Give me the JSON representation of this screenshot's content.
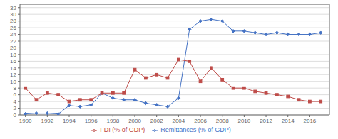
{
  "chart_data": {
    "type": "line",
    "x": [
      1990,
      1991,
      1992,
      1993,
      1994,
      1995,
      1996,
      1997,
      1998,
      1999,
      2000,
      2001,
      2002,
      2003,
      2004,
      2005,
      2006,
      2007,
      2008,
      2009,
      2010,
      2011,
      2012,
      2013,
      2014,
      2015,
      2016,
      2017
    ],
    "series": [
      {
        "name": "Remittances (% of GDP)",
        "color": "#4472C4",
        "marker": "diamond",
        "values": [
          0.3,
          0.5,
          0.5,
          0.3,
          2.8,
          2.5,
          3.0,
          6.5,
          5.0,
          4.5,
          4.5,
          3.5,
          3.0,
          2.5,
          5.0,
          25.5,
          28.0,
          28.5,
          28.0,
          25.0,
          25.0,
          24.5,
          24.0,
          24.5,
          24.0,
          24.0,
          24.0,
          24.5
        ]
      },
      {
        "name": "FDI (% of GDP)",
        "color": "#BE4B48",
        "marker": "square",
        "values": [
          8.0,
          4.5,
          6.5,
          6.0,
          4.0,
          4.5,
          4.5,
          6.5,
          6.5,
          6.5,
          13.5,
          11.0,
          12.0,
          11.0,
          16.5,
          16.0,
          10.0,
          14.0,
          10.5,
          8.0,
          8.0,
          7.0,
          6.5,
          6.0,
          5.5,
          4.5,
          4.0,
          4.0
        ]
      }
    ],
    "xlim": [
      1989.5,
      2017.8
    ],
    "xticks": [
      1990,
      1992,
      1994,
      1996,
      1998,
      2000,
      2002,
      2004,
      2006,
      2008,
      2010,
      2012,
      2014,
      2016
    ],
    "ylim": [
      0,
      33
    ],
    "yticks": [
      0,
      2,
      4,
      6,
      8,
      10,
      12,
      14,
      16,
      18,
      20,
      22,
      24,
      26,
      28,
      30,
      32
    ],
    "grid": "y",
    "legend": "bottom"
  }
}
